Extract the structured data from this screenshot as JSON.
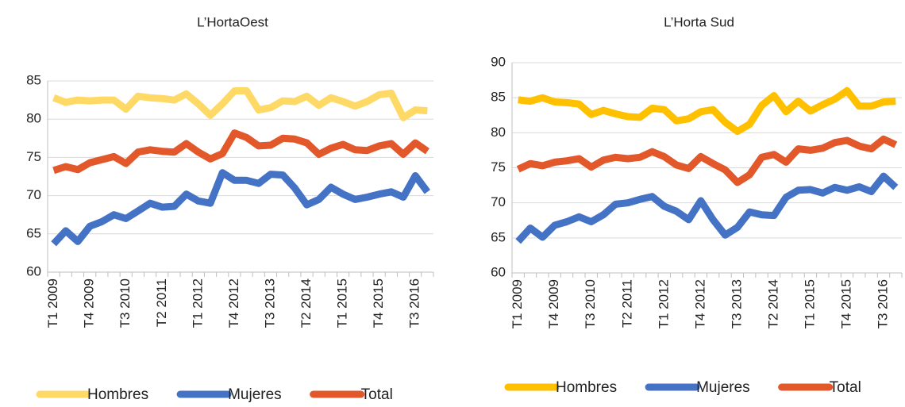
{
  "chart_data": [
    {
      "type": "line",
      "title": "L’HortaOest",
      "categories": [
        "T1 2009",
        null,
        null,
        "T4 2009",
        null,
        null,
        "T3 2010",
        null,
        null,
        "T2 2011",
        null,
        null,
        "T1 2012",
        null,
        null,
        "T4 2012",
        null,
        null,
        "T3 2013",
        null,
        null,
        "T2 2014",
        null,
        null,
        "T1 2015",
        null,
        null,
        "T4 2015",
        null,
        null,
        "T3 2016",
        null
      ],
      "series": [
        {
          "name": "Hombres",
          "color": "#ffd966",
          "values": [
            82.8,
            82.2,
            82.5,
            82.4,
            82.5,
            82.5,
            81.3,
            83.0,
            82.8,
            82.7,
            82.5,
            83.3,
            82.0,
            80.5,
            82.0,
            83.7,
            83.7,
            81.2,
            81.5,
            82.4,
            82.3,
            83.0,
            81.8,
            82.8,
            82.3,
            81.7,
            82.3,
            83.2,
            83.4,
            80.2,
            81.2,
            81.1
          ]
        },
        {
          "name": "Mujeres",
          "color": "#4472c4",
          "values": [
            63.7,
            65.4,
            64.0,
            66.0,
            66.6,
            67.5,
            67.0,
            68.0,
            69.0,
            68.5,
            68.6,
            70.2,
            69.3,
            69.0,
            73.0,
            72.0,
            72.0,
            71.6,
            72.8,
            72.7,
            71.0,
            68.8,
            69.5,
            71.1,
            70.2,
            69.5,
            69.8,
            70.2,
            70.5,
            69.8,
            72.6,
            70.5
          ]
        },
        {
          "name": "Total",
          "color": "#e2582a",
          "values": [
            73.3,
            73.8,
            73.4,
            74.3,
            74.7,
            75.1,
            74.2,
            75.7,
            76.0,
            75.8,
            75.7,
            76.8,
            75.7,
            74.8,
            75.5,
            78.2,
            77.6,
            76.5,
            76.6,
            77.5,
            77.4,
            76.9,
            75.4,
            76.2,
            76.7,
            76.0,
            75.9,
            76.5,
            76.8,
            75.4,
            76.9,
            75.8
          ]
        }
      ],
      "ylim": [
        60,
        85
      ],
      "yticks": [
        60,
        65,
        70,
        75,
        80,
        85
      ],
      "grid": true,
      "legend": "bottom"
    },
    {
      "type": "line",
      "title": "L’Horta Sud",
      "categories": [
        "T1 2009",
        null,
        null,
        "T4 2009",
        null,
        null,
        "T3 2010",
        null,
        null,
        "T2 2011",
        null,
        null,
        "T1 2012",
        null,
        null,
        "T4 2012",
        null,
        null,
        "T3 2013",
        null,
        null,
        "T2 2014",
        null,
        null,
        "T1 2015",
        null,
        null,
        "T4 2015",
        null,
        null,
        "T3 2016",
        null
      ],
      "series": [
        {
          "name": "Hombres",
          "color": "#ffc000",
          "values": [
            84.7,
            84.5,
            85.0,
            84.4,
            84.3,
            84.1,
            82.6,
            83.2,
            82.7,
            82.3,
            82.2,
            83.5,
            83.3,
            81.7,
            82.0,
            83.0,
            83.3,
            81.5,
            80.2,
            81.2,
            83.9,
            85.3,
            83.0,
            84.5,
            83.1,
            84.0,
            84.8,
            86.0,
            83.8,
            83.8,
            84.4,
            84.5
          ]
        },
        {
          "name": "Mujeres",
          "color": "#4472c4",
          "values": [
            64.5,
            66.4,
            65.1,
            66.8,
            67.3,
            68.0,
            67.3,
            68.3,
            69.8,
            70.0,
            70.5,
            70.9,
            69.5,
            68.8,
            67.6,
            70.3,
            67.6,
            65.4,
            66.5,
            68.7,
            68.3,
            68.2,
            70.8,
            71.8,
            71.9,
            71.4,
            72.2,
            71.8,
            72.3,
            71.6,
            73.8,
            72.2
          ]
        },
        {
          "name": "Total",
          "color": "#e2582a",
          "values": [
            74.8,
            75.6,
            75.3,
            75.8,
            76.0,
            76.3,
            75.1,
            76.1,
            76.5,
            76.3,
            76.5,
            77.3,
            76.6,
            75.4,
            74.9,
            76.6,
            75.6,
            74.7,
            72.9,
            74.0,
            76.5,
            76.9,
            75.8,
            77.7,
            77.5,
            77.8,
            78.6,
            78.9,
            78.1,
            77.7,
            79.1,
            78.3
          ]
        }
      ],
      "ylim": [
        60,
        90
      ],
      "yticks": [
        60,
        65,
        70,
        75,
        80,
        85,
        90
      ],
      "grid": true,
      "legend": "bottom"
    }
  ]
}
